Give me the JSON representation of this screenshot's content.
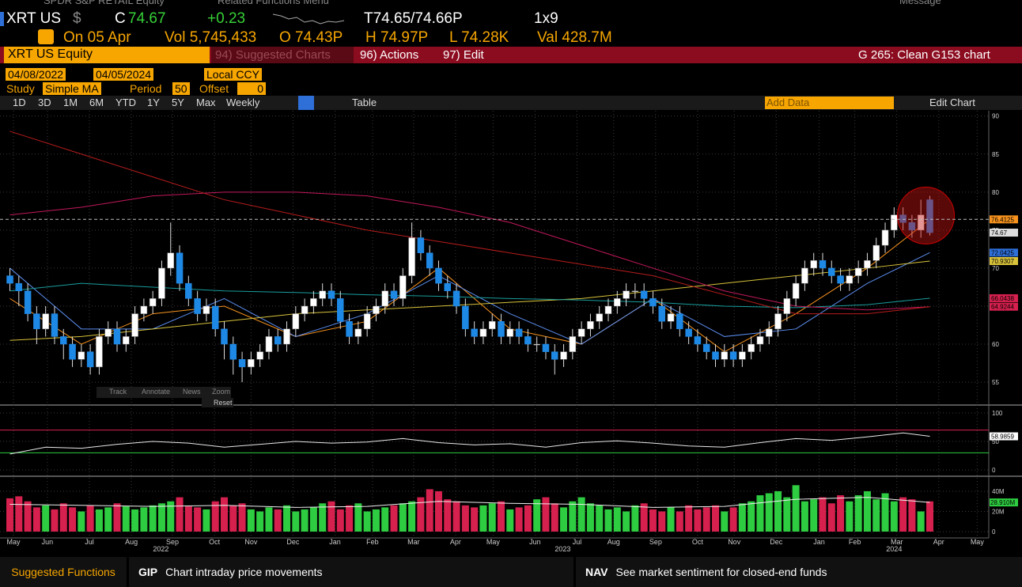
{
  "header": {
    "top_left": "SPDR S&P RETAIL Equity",
    "related": "Related Functions Menu",
    "message": "Message"
  },
  "quote": {
    "ticker": "XRT US",
    "currency": "$",
    "close_label": "C",
    "close": "74.67",
    "change": "+0.23",
    "bid_ask": "T74.65/74.66P",
    "size": "1x9",
    "date": "On 05 Apr",
    "volume": "Vol 5,745,433",
    "open": "O 74.43P",
    "high": "H 74.97P",
    "low": "L 74.28K",
    "value": "Val 428.7M"
  },
  "toolbar": {
    "security": "XRT US Equity",
    "suggested": "94) Suggested Charts",
    "actions": "96) Actions",
    "edit": "97) Edit",
    "chart_name": "G 265: Clean G153 chart",
    "start_date": "04/08/2022",
    "end_date": "04/05/2024",
    "currency_mode": "Local CCY",
    "study_label": "Study",
    "study": "Simple MA",
    "period_label": "Period",
    "period": "50",
    "offset_label": "Offset",
    "offset": "0",
    "ranges": [
      "1D",
      "3D",
      "1M",
      "6M",
      "YTD",
      "1Y",
      "5Y",
      "Max"
    ],
    "frequency": "Weekly",
    "table": "Table",
    "add_data": "Add Data",
    "edit_chart": "Edit Chart"
  },
  "chart_tools": [
    "Track",
    "Annotate",
    "News",
    "Zoom"
  ],
  "reset": "Reset",
  "chart": {
    "type": "candlestick",
    "up_color": "#ffffff",
    "down_color": "#1e88e5",
    "volume_up_color": "#2ecc40",
    "volume_down_color": "#d6204e",
    "xlim": [
      -0.4,
      109.6
    ],
    "ylim": [
      52.2,
      90.7
    ],
    "yticks": [
      55,
      60,
      65,
      70,
      75,
      80,
      85,
      90
    ],
    "open": [
      69,
      68,
      67,
      64,
      62,
      64,
      61,
      60,
      58,
      59,
      57,
      61,
      62,
      60,
      61,
      64,
      65,
      66,
      70,
      72,
      68,
      66,
      64,
      65,
      62,
      60,
      58,
      57,
      58,
      59,
      61,
      60,
      62,
      64,
      65,
      66,
      67,
      66,
      63,
      61,
      62,
      64,
      65,
      67,
      66,
      69,
      74,
      72,
      70,
      68,
      67,
      65,
      62,
      61,
      62,
      63,
      61,
      62,
      61,
      60,
      60,
      59,
      58,
      59,
      61,
      62,
      63,
      64,
      65,
      66,
      67,
      67,
      66,
      65,
      63,
      64,
      62,
      61,
      60,
      59,
      58,
      59,
      58,
      59,
      60,
      61,
      62,
      64,
      66,
      68,
      70,
      71,
      70,
      69,
      68,
      69,
      70,
      71,
      73,
      75,
      77,
      76,
      75,
      79
    ],
    "high": [
      70,
      69,
      68,
      65,
      65,
      65,
      62,
      61,
      60,
      60,
      62,
      63,
      63,
      62,
      65,
      66,
      67,
      71,
      76,
      73,
      69,
      67,
      66,
      66,
      63,
      61,
      59,
      59,
      60,
      62,
      62,
      63,
      65,
      66,
      67,
      68,
      68,
      67,
      64,
      63,
      65,
      66,
      68,
      68,
      70,
      76,
      75,
      73,
      71,
      69,
      68,
      66,
      63,
      63,
      64,
      64,
      63,
      63,
      62,
      61,
      61,
      60,
      60,
      62,
      63,
      64,
      65,
      66,
      67,
      68,
      68,
      68,
      67,
      66,
      65,
      65,
      63,
      62,
      61,
      60,
      60,
      60,
      60,
      61,
      62,
      63,
      65,
      67,
      69,
      71,
      72,
      72,
      71,
      70,
      70,
      71,
      72,
      74,
      76,
      78,
      78,
      77,
      79,
      79.5
    ],
    "low": [
      67,
      65,
      63,
      60,
      61,
      60,
      58,
      57,
      57,
      56,
      56,
      60,
      59,
      59,
      60,
      63,
      64,
      65,
      69,
      67,
      65,
      63,
      63,
      61,
      58,
      56,
      55,
      56,
      57,
      58,
      59,
      59,
      61,
      63,
      64,
      65,
      65,
      62,
      60,
      60,
      61,
      63,
      64,
      65,
      65,
      68,
      71,
      69,
      67,
      66,
      64,
      61,
      60,
      60,
      61,
      60,
      60,
      60,
      59,
      59,
      58,
      56,
      57,
      58,
      60,
      61,
      62,
      63,
      64,
      65,
      66,
      65,
      64,
      62,
      62,
      61,
      60,
      59,
      58,
      57,
      57,
      57,
      57,
      58,
      59,
      60,
      61,
      63,
      65,
      67,
      69,
      69,
      68,
      67,
      67,
      68,
      69,
      70,
      72,
      74,
      75,
      74,
      74,
      74.3
    ],
    "close": [
      68,
      67,
      64,
      62,
      64,
      61,
      60,
      58,
      59,
      57,
      61,
      62,
      60,
      61,
      64,
      65,
      66,
      70,
      72,
      68,
      66,
      64,
      65,
      62,
      60,
      58,
      57,
      58,
      59,
      61,
      60,
      62,
      64,
      65,
      66,
      67,
      66,
      63,
      61,
      62,
      64,
      65,
      67,
      66,
      69,
      74,
      72,
      70,
      68,
      67,
      65,
      62,
      61,
      62,
      63,
      61,
      62,
      61,
      60,
      60,
      59,
      58,
      59,
      61,
      62,
      63,
      64,
      65,
      66,
      67,
      67,
      66,
      65,
      63,
      64,
      62,
      61,
      60,
      59,
      58,
      59,
      58,
      59,
      60,
      61,
      62,
      64,
      66,
      68,
      70,
      71,
      70,
      69,
      68,
      69,
      70,
      71,
      73,
      75,
      77,
      76,
      75,
      77,
      74.67
    ],
    "ma_x": [
      0,
      8,
      16,
      24,
      32,
      40,
      48,
      56,
      64,
      72,
      80,
      88,
      96,
      103
    ],
    "moving_averages": [
      {
        "color": "#f7931e",
        "values": [
          66,
          60,
          64,
          65,
          61,
          63,
          70,
          62,
          60,
          66,
          59,
          64,
          70,
          76.4125
        ]
      },
      {
        "color": "#5b8def",
        "values": [
          70,
          62,
          62,
          66,
          61,
          64,
          69,
          64,
          60,
          66,
          61,
          62,
          68,
          72.0425
        ]
      },
      {
        "color": "#d8c23a",
        "values": [
          60.5,
          61,
          62,
          63,
          64,
          64.5,
          65,
          65.5,
          66,
          67,
          68,
          69,
          70,
          70.9307
        ]
      },
      {
        "color": "#1a9c9c",
        "values": [
          67,
          68,
          67.5,
          67,
          66.8,
          66.5,
          66.3,
          66,
          65.8,
          65.5,
          65,
          64.8,
          65.2,
          66.0438
        ]
      },
      {
        "color": "#c2185b",
        "values": [
          77,
          78,
          79.5,
          80,
          80,
          79.5,
          78,
          76,
          73,
          70,
          67,
          65,
          64.5,
          64.9244
        ]
      },
      {
        "color": "#b71c1c",
        "values": [
          88,
          85,
          82,
          79,
          77,
          75,
          73.5,
          72,
          70.5,
          69,
          66.5,
          64,
          64,
          64.9244
        ]
      }
    ],
    "last_values": [
      76.4125,
      74.67,
      72.0425,
      70.9307,
      66.0438,
      64.9244
    ],
    "last_value_colors": [
      "#f7931e",
      "#dddddd",
      "#2e6fd8",
      "#d8c23a",
      "#d6204e",
      "#d6204e"
    ],
    "xticks": [
      {
        "value": 0.4,
        "label": "May"
      },
      {
        "value": 4.2,
        "label": "Jun"
      },
      {
        "value": 8.9,
        "label": "Jul"
      },
      {
        "value": 13.6,
        "label": "Aug"
      },
      {
        "value": 18.2,
        "label": "Sep"
      },
      {
        "value": 22.9,
        "label": "Oct"
      },
      {
        "value": 27,
        "label": "Nov"
      },
      {
        "value": 31.7,
        "label": "Dec"
      },
      {
        "value": 36.4,
        "label": "Jan"
      },
      {
        "value": 40.6,
        "label": "Feb"
      },
      {
        "value": 45.2,
        "label": "Mar"
      },
      {
        "value": 49.9,
        "label": "Apr"
      },
      {
        "value": 54.1,
        "label": "May"
      },
      {
        "value": 58.8,
        "label": "Jun"
      },
      {
        "value": 63.5,
        "label": "Jul"
      },
      {
        "value": 67.6,
        "label": "Aug"
      },
      {
        "value": 72.3,
        "label": "Sep"
      },
      {
        "value": 77,
        "label": "Oct"
      },
      {
        "value": 81.1,
        "label": "Nov"
      },
      {
        "value": 85.8,
        "label": "Dec"
      },
      {
        "value": 90.6,
        "label": "Jan"
      },
      {
        "value": 94.6,
        "label": "Feb"
      },
      {
        "value": 99.3,
        "label": "Mar"
      },
      {
        "value": 104,
        "label": "Apr"
      },
      {
        "value": 108.3,
        "label": "May"
      }
    ],
    "year_labels": [
      {
        "value": 16.9,
        "label": "2022"
      },
      {
        "value": 61.9,
        "label": "2023"
      },
      {
        "value": 99,
        "label": "2024"
      }
    ],
    "rsi": {
      "x": [
        0,
        4,
        8,
        12,
        16,
        20,
        24,
        28,
        32,
        36,
        40,
        44,
        48,
        52,
        56,
        60,
        64,
        68,
        72,
        76,
        80,
        84,
        88,
        92,
        96,
        100,
        103
      ],
      "values": [
        28,
        40,
        38,
        45,
        50,
        47,
        40,
        45,
        50,
        47,
        49,
        55,
        48,
        44,
        46,
        40,
        48,
        51,
        47,
        42,
        40,
        48,
        55,
        52,
        58,
        65,
        58.9859
      ],
      "ylim": [
        -8.3,
        109.7
      ],
      "yticks": [
        0,
        50,
        100
      ],
      "levels": [
        30,
        70
      ],
      "level_colors": [
        "#2ecc40",
        "#d6204e"
      ],
      "last_value": 58.9859
    },
    "volume": {
      "values": [
        33,
        35,
        30,
        24,
        26,
        22,
        28,
        24,
        20,
        26,
        22,
        24,
        28,
        25,
        22,
        24,
        26,
        28,
        30,
        34,
        25,
        24,
        22,
        30,
        34,
        26,
        28,
        22,
        20,
        24,
        22,
        26,
        20,
        22,
        24,
        28,
        30,
        22,
        26,
        28,
        20,
        22,
        24,
        26,
        28,
        30,
        34,
        42,
        40,
        32,
        30,
        26,
        24,
        26,
        28,
        30,
        22,
        24,
        26,
        32,
        34,
        28,
        24,
        30,
        34,
        28,
        26,
        22,
        24,
        20,
        26,
        28,
        22,
        20,
        24,
        20,
        26,
        22,
        24,
        26,
        20,
        24,
        28,
        30,
        36,
        38,
        40,
        34,
        46,
        30,
        32,
        34,
        28,
        36,
        30,
        36,
        40,
        32,
        38,
        30,
        34,
        32,
        20,
        30
      ],
      "ma": [
        27,
        26,
        25,
        26,
        24,
        25,
        30,
        28,
        27,
        24,
        25,
        32,
        34,
        28.91
      ],
      "ma_last_label": "28.910M",
      "ylim": [
        -6.3,
        53.3
      ],
      "yticks": [
        0,
        {
          "value": 20,
          "label": "20M"
        },
        {
          "value": 40,
          "label": "40M"
        }
      ]
    }
  },
  "footer": {
    "suggested": "Suggested Functions",
    "f1_code": "GIP",
    "f1_text": "Chart intraday price movements",
    "f2_code": "NAV",
    "f2_text": "See market sentiment for closed-end funds"
  }
}
